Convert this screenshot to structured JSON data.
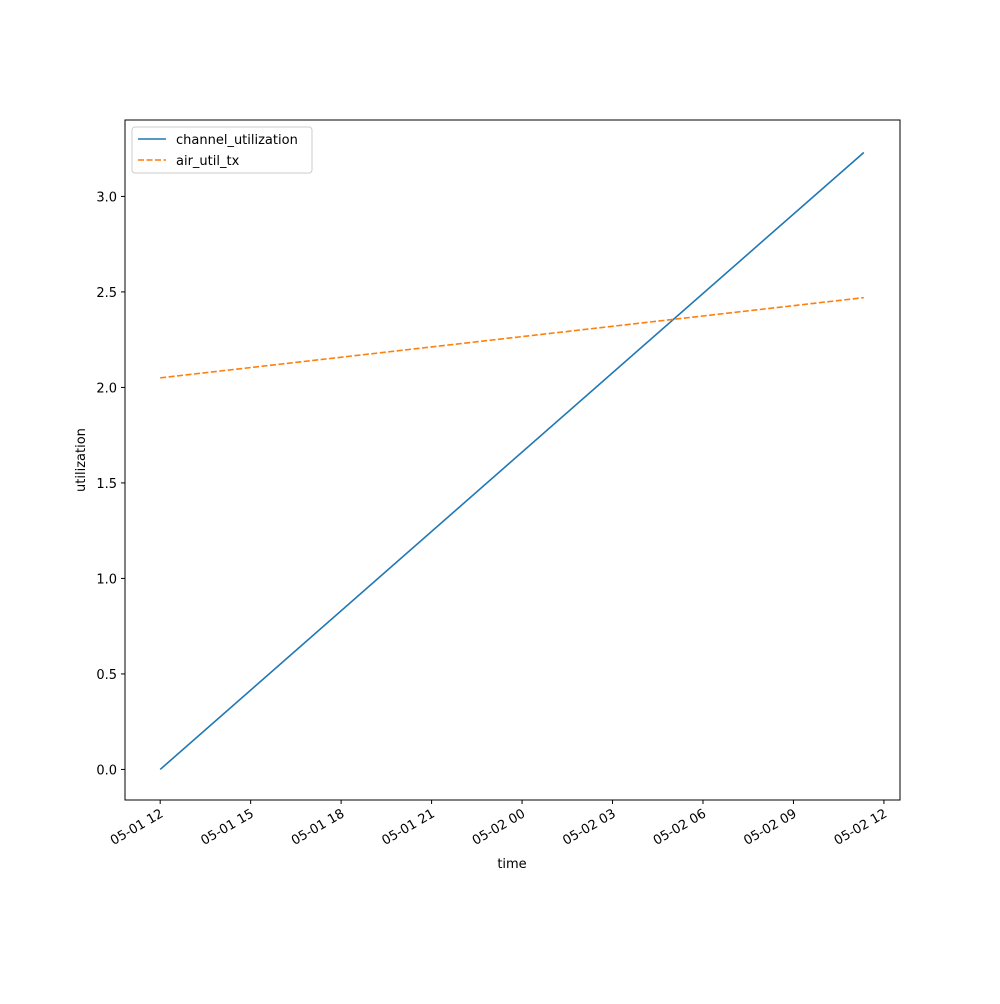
{
  "chart_data": {
    "type": "line",
    "x_label": "time",
    "y_label": "utilization",
    "x": [
      "05-01 12:00",
      "05-02 11:20"
    ],
    "series": [
      {
        "name": "channel_utilization",
        "color": "#1f77b4",
        "linestyle": "solid",
        "values": [
          0.0,
          3.23
        ]
      },
      {
        "name": "air_util_tx",
        "color": "#ff7f0e",
        "linestyle": "dashed",
        "values": [
          2.05,
          2.47
        ]
      }
    ],
    "xlim": [
      "05-01 10:50",
      "05-02 12:32"
    ],
    "xticks": [
      {
        "value": "05-01 12:00",
        "label": "05-01 12"
      },
      {
        "value": "05-01 15:00",
        "label": "05-01 15"
      },
      {
        "value": "05-01 18:00",
        "label": "05-01 18"
      },
      {
        "value": "05-01 21:00",
        "label": "05-01 21"
      },
      {
        "value": "05-02 00:00",
        "label": "05-02 00"
      },
      {
        "value": "05-02 03:00",
        "label": "05-02 03"
      },
      {
        "value": "05-02 06:00",
        "label": "05-02 06"
      },
      {
        "value": "05-02 09:00",
        "label": "05-02 09"
      },
      {
        "value": "05-02 12:00",
        "label": "05-02 12"
      }
    ],
    "ylim": [
      -0.16,
      3.4
    ],
    "yticks": [
      {
        "value": 0,
        "label": "0.0"
      },
      {
        "value": 0.5,
        "label": "0.5"
      },
      {
        "value": 1,
        "label": "1.0"
      },
      {
        "value": 1.5,
        "label": "1.5"
      },
      {
        "value": 2,
        "label": "2.0"
      },
      {
        "value": 2.5,
        "label": "2.5"
      },
      {
        "value": 3,
        "label": "3.0"
      }
    ],
    "legend": "upper left",
    "grid": false
  }
}
